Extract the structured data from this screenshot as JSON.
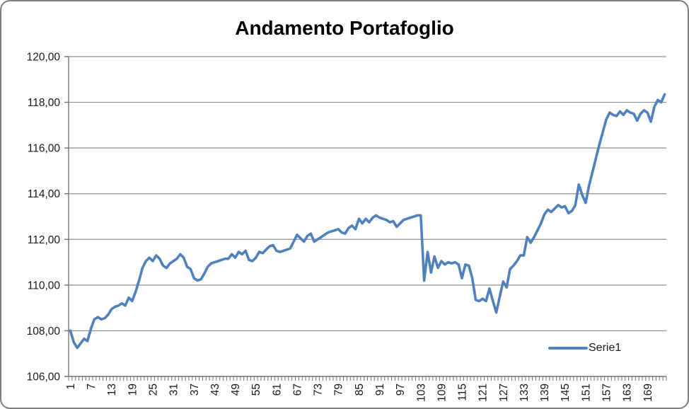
{
  "chart": {
    "title": "Andamento Portafoglio",
    "legend_label": "Serie1"
  },
  "chart_data": {
    "type": "line",
    "title": "Andamento Portafoglio",
    "xlabel": "",
    "ylabel": "",
    "ylim": [
      106,
      120
    ],
    "grid": true,
    "legend_position": "bottom-right-inside",
    "y_ticks": [
      {
        "value": 106,
        "label": "106,00"
      },
      {
        "value": 108,
        "label": "108,00"
      },
      {
        "value": 110,
        "label": "110,00"
      },
      {
        "value": 112,
        "label": "112,00"
      },
      {
        "value": 114,
        "label": "114,00"
      },
      {
        "value": 116,
        "label": "116,00"
      },
      {
        "value": 118,
        "label": "118,00"
      },
      {
        "value": 120,
        "label": "120,00"
      }
    ],
    "x_tick_values": [
      1,
      7,
      13,
      19,
      25,
      31,
      37,
      43,
      49,
      55,
      61,
      67,
      73,
      79,
      85,
      91,
      97,
      103,
      109,
      115,
      121,
      127,
      133,
      139,
      145,
      151,
      157,
      163,
      169
    ],
    "series": [
      {
        "name": "Serie1",
        "color": "#4F81BD",
        "values": [
          108.0,
          107.5,
          107.25,
          107.45,
          107.65,
          107.55,
          108.1,
          108.5,
          108.6,
          108.5,
          108.55,
          108.7,
          108.95,
          109.05,
          109.1,
          109.2,
          109.1,
          109.45,
          109.3,
          109.7,
          110.2,
          110.75,
          111.05,
          111.2,
          111.05,
          111.3,
          111.15,
          110.85,
          110.75,
          110.95,
          111.05,
          111.15,
          111.35,
          111.2,
          110.8,
          110.7,
          110.3,
          110.2,
          110.25,
          110.5,
          110.8,
          110.95,
          111.0,
          111.05,
          111.1,
          111.15,
          111.15,
          111.35,
          111.2,
          111.45,
          111.35,
          111.5,
          111.1,
          111.05,
          111.2,
          111.45,
          111.4,
          111.55,
          111.7,
          111.75,
          111.5,
          111.45,
          111.5,
          111.55,
          111.6,
          111.9,
          112.2,
          112.05,
          111.9,
          112.15,
          112.25,
          111.9,
          112.0,
          112.1,
          112.2,
          112.3,
          112.35,
          112.4,
          112.45,
          112.3,
          112.25,
          112.5,
          112.6,
          112.45,
          112.9,
          112.7,
          112.9,
          112.75,
          112.95,
          113.05,
          112.95,
          112.9,
          112.85,
          112.75,
          112.8,
          112.55,
          112.7,
          112.85,
          112.9,
          112.95,
          113.0,
          113.05,
          113.05,
          110.2,
          111.45,
          110.55,
          111.25,
          110.75,
          111.05,
          110.9,
          111.0,
          110.95,
          111.0,
          110.9,
          110.3,
          110.9,
          110.85,
          110.3,
          109.35,
          109.3,
          109.4,
          109.3,
          109.85,
          109.3,
          108.8,
          109.5,
          110.15,
          109.9,
          110.7,
          110.85,
          111.05,
          111.3,
          111.3,
          112.1,
          111.85,
          112.1,
          112.4,
          112.7,
          113.1,
          113.3,
          113.2,
          113.35,
          113.5,
          113.4,
          113.45,
          113.15,
          113.25,
          113.5,
          114.4,
          113.95,
          113.6,
          114.35,
          114.95,
          115.55,
          116.15,
          116.7,
          117.25,
          117.55,
          117.45,
          117.4,
          117.6,
          117.45,
          117.65,
          117.55,
          117.5,
          117.2,
          117.5,
          117.65,
          117.55,
          117.15,
          117.8,
          118.1,
          118.0,
          118.35
        ]
      }
    ],
    "colors": {
      "series": "#4F81BD",
      "gridline": "#8F8F8F",
      "axis": "#777777",
      "tick": "#777777",
      "label": "#1A1A1A",
      "border": "#7F7F7F",
      "background": "#FFFFFF"
    }
  }
}
